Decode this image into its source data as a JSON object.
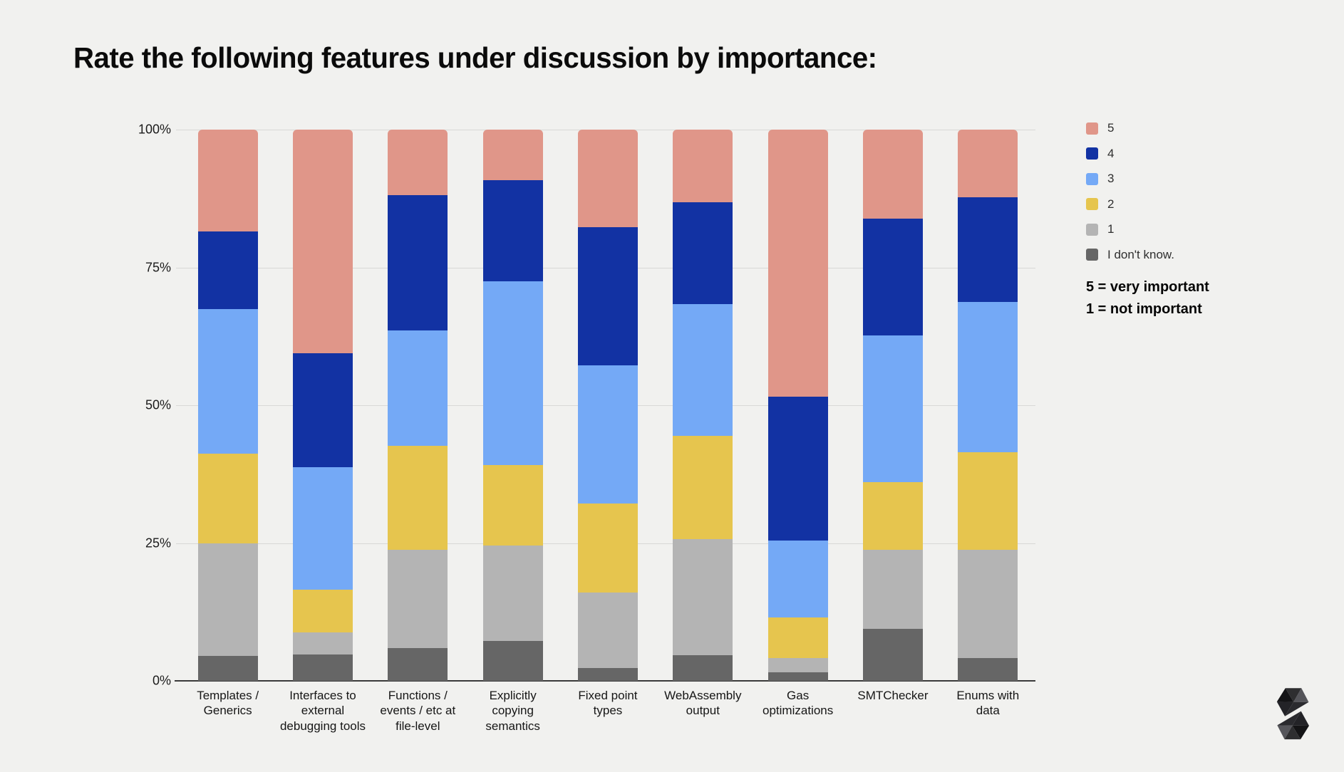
{
  "title": "Rate the following features under discussion by importance:",
  "legend": {
    "items": [
      {
        "label": "5",
        "color": "#e09689"
      },
      {
        "label": "4",
        "color": "#1232a3"
      },
      {
        "label": "3",
        "color": "#74a9f6"
      },
      {
        "label": "2",
        "color": "#e6c54e"
      },
      {
        "label": "1",
        "color": "#b4b4b4"
      },
      {
        "label": "I don't know.",
        "color": "#666666"
      }
    ],
    "note_line1": "5 = very important",
    "note_line2": "1 = not important"
  },
  "chart_data": {
    "type": "bar",
    "stacked": true,
    "percent": true,
    "title": "Rate the following features under discussion by importance:",
    "xlabel": "",
    "ylabel": "",
    "ylim": [
      0,
      100
    ],
    "yticks": [
      "0%",
      "25%",
      "50%",
      "75%",
      "100%"
    ],
    "grid": true,
    "legend_position": "right",
    "categories": [
      "Templates / Generics",
      "Interfaces to external debugging tools",
      "Functions / events / etc at file-level",
      "Explicitly copying semantics",
      "Fixed point types",
      "WebAssembly output",
      "Gas optimizations",
      "SMTChecker",
      "Enums with data"
    ],
    "series": [
      {
        "name": "I don't know.",
        "color": "#666666",
        "values": [
          4.5,
          4.8,
          6.0,
          7.3,
          2.3,
          4.6,
          1.6,
          9.4,
          4.2
        ]
      },
      {
        "name": "1",
        "color": "#b4b4b4",
        "values": [
          20.5,
          4.0,
          17.8,
          17.3,
          13.7,
          21.1,
          2.5,
          14.4,
          19.6
        ]
      },
      {
        "name": "2",
        "color": "#e6c54e",
        "values": [
          16.2,
          7.8,
          18.9,
          14.6,
          16.2,
          18.8,
          7.4,
          12.3,
          17.7
        ]
      },
      {
        "name": "3",
        "color": "#74a9f6",
        "values": [
          26.2,
          22.2,
          20.9,
          33.3,
          25.0,
          23.9,
          13.9,
          26.6,
          27.3
        ]
      },
      {
        "name": "4",
        "color": "#1232a3",
        "values": [
          14.1,
          20.6,
          24.5,
          18.3,
          25.1,
          18.4,
          26.2,
          21.2,
          18.9
        ]
      },
      {
        "name": "5",
        "color": "#e09689",
        "values": [
          18.5,
          40.6,
          11.9,
          9.2,
          17.7,
          13.2,
          48.4,
          16.1,
          12.3
        ]
      }
    ]
  },
  "colors": {
    "background": "#f1f1ef",
    "gridline": "#d8d8d6",
    "axis": "#3a3a3a"
  },
  "logo": {
    "name": "solidity-logo"
  }
}
